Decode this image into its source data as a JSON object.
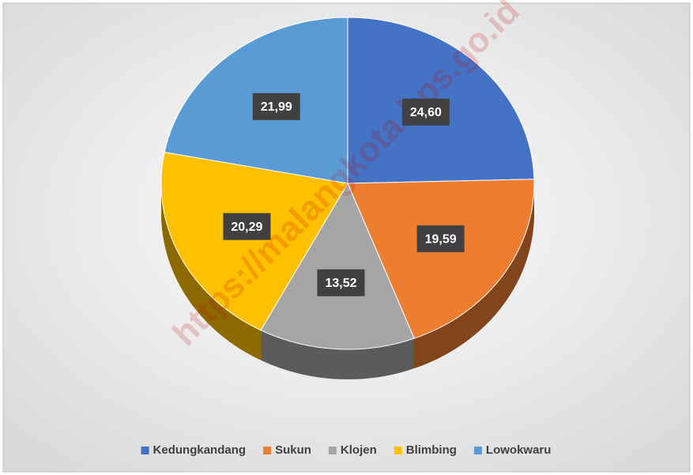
{
  "chart_data": {
    "type": "pie",
    "categories": [
      "Kedungkandang",
      "Sukun",
      "Klojen",
      "Blimbing",
      "Lowokwaru"
    ],
    "values": [
      24.6,
      19.59,
      13.52,
      20.29,
      21.99
    ],
    "value_labels": [
      "24,60",
      "19,59",
      "13,52",
      "20,29",
      "21,99"
    ],
    "colors": [
      "#4472c4",
      "#ed7d31",
      "#a5a5a5",
      "#ffc000",
      "#5b9bd5"
    ],
    "legend": "bottom",
    "watermark": "https://malangkota.bps.go.id"
  }
}
